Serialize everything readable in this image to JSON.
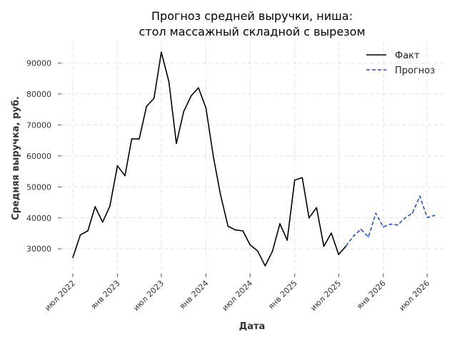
{
  "chart_data": {
    "type": "line",
    "title_lines": [
      "Прогноз средней выручки, ниша:",
      "стол массажный складной с вырезом"
    ],
    "xlabel": "Дата",
    "ylabel": "Средняя выручка, руб.",
    "ylim": [
      22000,
      97000
    ],
    "yticks": [
      30000,
      40000,
      50000,
      60000,
      70000,
      80000,
      90000
    ],
    "xlim": [
      "2022-05-15",
      "2026-09-15"
    ],
    "xticks": [
      {
        "date": "2022-07-01",
        "label": "июл 2022"
      },
      {
        "date": "2023-01-01",
        "label": "янв 2023"
      },
      {
        "date": "2023-07-01",
        "label": "июл 2023"
      },
      {
        "date": "2024-01-01",
        "label": "янв 2024"
      },
      {
        "date": "2024-07-01",
        "label": "июл 2024"
      },
      {
        "date": "2025-01-01",
        "label": "янв 2025"
      },
      {
        "date": "2025-07-01",
        "label": "июл 2025"
      },
      {
        "date": "2026-01-01",
        "label": "янв 2026"
      },
      {
        "date": "2026-07-01",
        "label": "июл 2026"
      }
    ],
    "grid": true,
    "legend_position": "top-right",
    "series": [
      {
        "name": "Факт",
        "color": "#000000",
        "style": "solid",
        "x": [
          "2022-07-01",
          "2022-08-01",
          "2022-09-01",
          "2022-10-01",
          "2022-11-01",
          "2022-12-01",
          "2023-01-01",
          "2023-02-01",
          "2023-03-01",
          "2023-04-01",
          "2023-05-01",
          "2023-06-01",
          "2023-07-01",
          "2023-08-01",
          "2023-09-01",
          "2023-10-01",
          "2023-11-01",
          "2023-12-01",
          "2024-01-01",
          "2024-02-01",
          "2024-03-01",
          "2024-04-01",
          "2024-05-01",
          "2024-06-01",
          "2024-07-01",
          "2024-08-01",
          "2024-09-01",
          "2024-10-01",
          "2024-11-01",
          "2024-12-01",
          "2025-01-01",
          "2025-02-01",
          "2025-03-01",
          "2025-04-01",
          "2025-05-01",
          "2025-06-01",
          "2025-07-01",
          "2025-08-01"
        ],
        "y": [
          27200,
          34500,
          35800,
          43600,
          38600,
          43800,
          56800,
          53600,
          65500,
          65500,
          76000,
          78600,
          93500,
          84000,
          64000,
          74300,
          79400,
          82000,
          75500,
          59500,
          47500,
          37300,
          36100,
          35800,
          31300,
          29300,
          24500,
          29200,
          38100,
          32800,
          52200,
          53000,
          40000,
          43300,
          30800,
          35100,
          28200,
          30900
        ]
      },
      {
        "name": "Прогноз",
        "color": "#1f4fd6",
        "style": "dashed",
        "x": [
          "2025-08-01",
          "2025-09-01",
          "2025-10-01",
          "2025-11-01",
          "2025-12-01",
          "2026-01-01",
          "2026-02-01",
          "2026-03-01",
          "2026-04-01",
          "2026-05-01",
          "2026-06-01",
          "2026-07-01",
          "2026-08-01"
        ],
        "y": [
          30900,
          34200,
          36300,
          33800,
          41500,
          37100,
          38000,
          37700,
          40000,
          41500,
          47000,
          40100,
          40800
        ]
      }
    ]
  }
}
